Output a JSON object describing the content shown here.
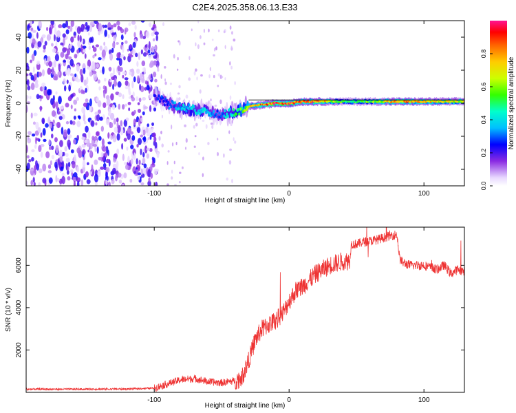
{
  "chart_data": [
    {
      "type": "heatmap",
      "title": "C2E4.2025.358.06.13.E33",
      "xlabel": "Height of straight line (km)",
      "ylabel": "Frequency (Hz)",
      "xlim": [
        -195,
        130
      ],
      "ylim": [
        -50,
        50
      ],
      "xticks": [
        -100,
        0,
        100
      ],
      "yticks": [
        -40,
        -20,
        0,
        20,
        40
      ],
      "colorbar": {
        "label": "Normalized spectral amplitude",
        "range": [
          0.0,
          1.0
        ],
        "ticks": [
          "0.0",
          "0.2",
          "0.4",
          "0.6",
          "0.8"
        ]
      },
      "ridge": {
        "description_points_x": [
          -100,
          -90,
          -80,
          -70,
          -60,
          -52,
          -45,
          -38,
          -30,
          -20,
          -10,
          0,
          10,
          20,
          40,
          60,
          80,
          100,
          130
        ],
        "frequency_hz": [
          5,
          0,
          -3,
          -4,
          -5,
          -7,
          -6,
          -5,
          -2,
          -1,
          0,
          0,
          1,
          1,
          1,
          1,
          1,
          1,
          1
        ],
        "amplitude": [
          0.25,
          0.3,
          0.4,
          0.45,
          0.4,
          0.3,
          0.45,
          0.55,
          0.75,
          0.85,
          0.95,
          0.95,
          0.9,
          0.9,
          0.55,
          0.6,
          0.85,
          0.8,
          0.7
        ]
      },
      "noise_region_x": [
        -195,
        -100
      ]
    },
    {
      "type": "line",
      "xlabel": "Height of straight line (km)",
      "ylabel": "SNR (10 * v/v)",
      "xlim": [
        -195,
        130
      ],
      "ylim": [
        0,
        7800
      ],
      "xticks": [
        -100,
        0,
        100
      ],
      "yticks": [
        2000,
        4000,
        6000
      ],
      "series": [
        {
          "name": "SNR",
          "color": "#ee3333",
          "x": [
            -195,
            -160,
            -120,
            -100,
            -90,
            -80,
            -70,
            -60,
            -50,
            -45,
            -40,
            -35,
            -30,
            -25,
            -20,
            -15,
            -10,
            -5,
            0,
            5,
            10,
            15,
            20,
            25,
            30,
            35,
            40,
            45,
            46,
            50,
            55,
            60,
            65,
            70,
            75,
            80,
            82,
            85,
            90,
            95,
            100,
            105,
            110,
            115,
            120,
            125,
            130
          ],
          "y": [
            150,
            150,
            160,
            200,
            400,
            600,
            650,
            500,
            450,
            500,
            550,
            700,
            1500,
            2500,
            3000,
            3200,
            3400,
            3700,
            4300,
            4800,
            5000,
            5300,
            5600,
            5800,
            6000,
            6100,
            6200,
            6200,
            7000,
            7000,
            7100,
            7150,
            7200,
            7300,
            7400,
            7450,
            6300,
            6100,
            6000,
            6000,
            6000,
            5900,
            5800,
            6000,
            5600,
            5800,
            5700
          ]
        }
      ]
    }
  ]
}
